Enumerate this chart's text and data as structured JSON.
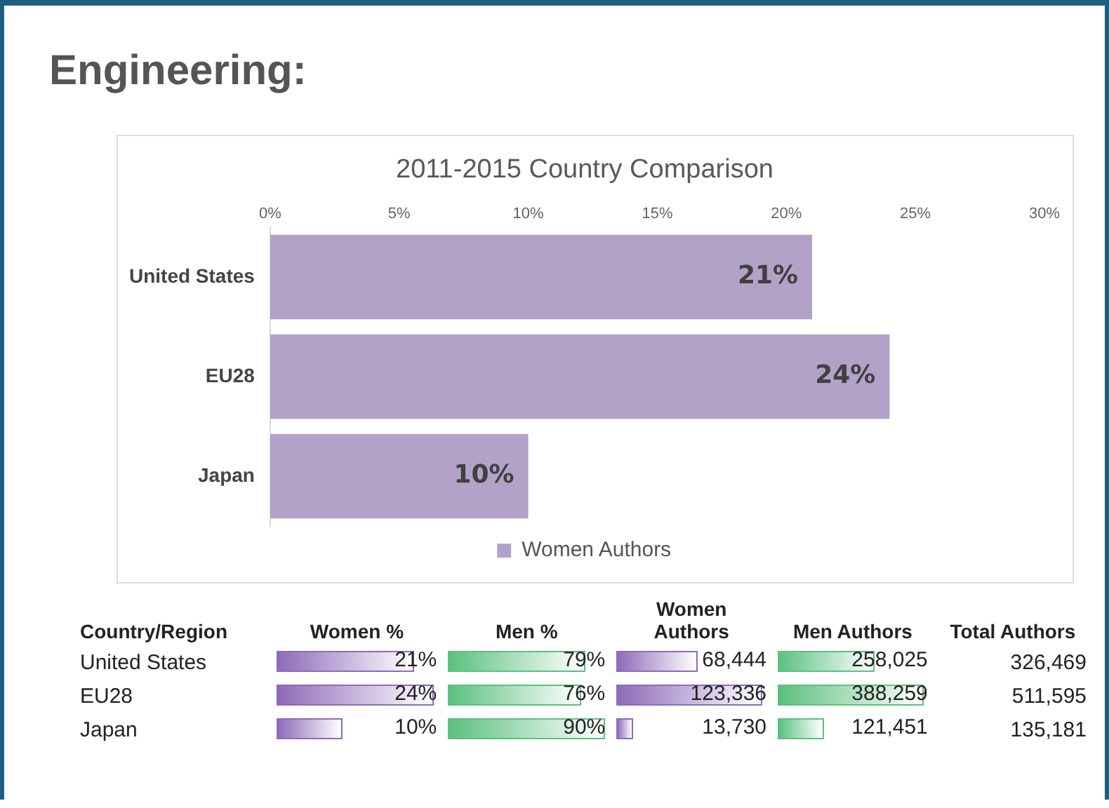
{
  "chart_data": [
    {
      "type": "bar",
      "title": "2011-2015 Country Comparison",
      "annotations": [
        "Engineering:"
      ],
      "orientation": "horizontal",
      "categories": [
        "United States",
        "EU28",
        "Japan"
      ],
      "series": [
        {
          "name": "Women Authors",
          "color": "#b3a2c7",
          "values": [
            21,
            24,
            10
          ],
          "value_labels": [
            "21%",
            "24%",
            "10%"
          ]
        }
      ],
      "xlim": [
        0,
        30
      ],
      "xticks": [
        {
          "value": 0,
          "label": "0%"
        },
        {
          "value": 5,
          "label": "5%"
        },
        {
          "value": 10,
          "label": "10%"
        },
        {
          "value": 15,
          "label": "15%"
        },
        {
          "value": 20,
          "label": "20%"
        },
        {
          "value": 25,
          "label": "25%"
        },
        {
          "value": 30,
          "label": "30%"
        }
      ],
      "grid": false,
      "legend": "bottom"
    },
    {
      "type": "other",
      "ylabel": "Country/Region",
      "categories": [
        "United States",
        "EU28",
        "Japan"
      ],
      "series": [
        {
          "name": "Women %",
          "color": "#8e6bb8",
          "values": [
            21,
            24,
            10
          ],
          "value_labels": [
            "21%",
            "24%",
            "10%"
          ]
        },
        {
          "name": "Men %",
          "color": "#5cc07f",
          "values": [
            79,
            76,
            90
          ],
          "value_labels": [
            "79%",
            "76%",
            "90%"
          ]
        },
        {
          "name": "Women Authors",
          "color": "#8e6bb8",
          "values": [
            68444,
            123336,
            13730
          ],
          "value_labels": [
            "68,444",
            "123,336",
            "13,730"
          ]
        },
        {
          "name": "Men Authors",
          "color": "#5cc07f",
          "values": [
            258025,
            388259,
            121451
          ],
          "value_labels": [
            "258,025",
            "388,259",
            "121,451"
          ]
        }
      ],
      "annotations": [
        "Total Authors"
      ],
      "totals": [
        "326,469",
        "511,595",
        "135,181"
      ]
    }
  ]
}
